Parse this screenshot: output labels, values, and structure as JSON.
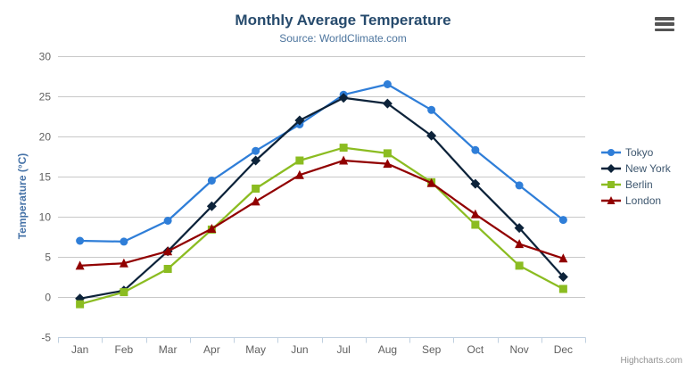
{
  "chart_data": {
    "type": "line",
    "title": "Monthly Average Temperature",
    "subtitle": "Source: WorldClimate.com",
    "xlabel": "",
    "ylabel": "Temperature (°C)",
    "categories": [
      "Jan",
      "Feb",
      "Mar",
      "Apr",
      "May",
      "Jun",
      "Jul",
      "Aug",
      "Sep",
      "Oct",
      "Nov",
      "Dec"
    ],
    "ylim": [
      -5,
      30
    ],
    "yticks": [
      -5,
      0,
      5,
      10,
      15,
      20,
      25,
      30
    ],
    "grid": "horizontal",
    "legend_position": "right",
    "series": [
      {
        "name": "Tokyo",
        "color": "#2f7ed8",
        "marker": "circle",
        "values": [
          7.0,
          6.9,
          9.5,
          14.5,
          18.2,
          21.5,
          25.2,
          26.5,
          23.3,
          18.3,
          13.9,
          9.6
        ]
      },
      {
        "name": "New York",
        "color": "#0d233a",
        "marker": "diamond",
        "values": [
          -0.2,
          0.8,
          5.7,
          11.3,
          17.0,
          22.0,
          24.8,
          24.1,
          20.1,
          14.1,
          8.6,
          2.5
        ]
      },
      {
        "name": "Berlin",
        "color": "#8bbc21",
        "marker": "square",
        "values": [
          -0.9,
          0.6,
          3.5,
          8.4,
          13.5,
          17.0,
          18.6,
          17.9,
          14.3,
          9.0,
          3.9,
          1.0
        ]
      },
      {
        "name": "London",
        "color": "#910000",
        "marker": "triangle",
        "values": [
          3.9,
          4.2,
          5.7,
          8.5,
          11.9,
          15.2,
          17.0,
          16.6,
          14.2,
          10.3,
          6.6,
          4.8
        ]
      }
    ]
  },
  "credits": {
    "label": "Highcharts.com"
  },
  "icons": {
    "export_menu": "hamburger-icon"
  },
  "theme": {
    "title_color": "#274b6d",
    "subtitle_color": "#4d759e",
    "axis_title_color": "#4572a7",
    "axis_label_color": "#606060",
    "legend_text_color": "#3e576f",
    "grid_color": "#c8c8c8",
    "axis_line_color": "#c0d0e0",
    "credits_color": "#909090",
    "background": "#ffffff"
  }
}
